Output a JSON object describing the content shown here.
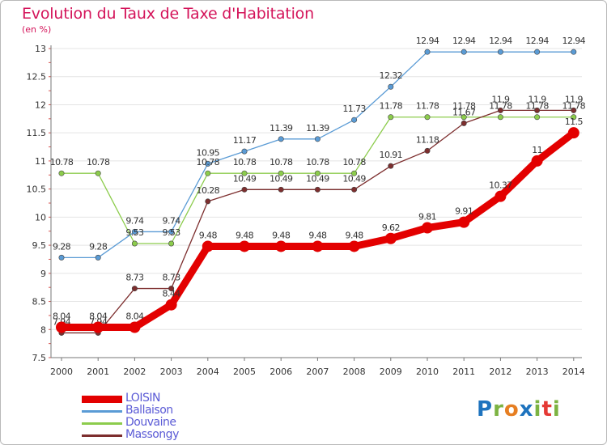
{
  "title": "Evolution du Taux de Taxe d'Habitation",
  "subtitle": "(en %)",
  "logo": {
    "text": "Proxiti",
    "letters": [
      "P",
      "r",
      "o",
      "x",
      "i",
      "t",
      "i"
    ],
    "colors": [
      "#1e73be",
      "#7cb342",
      "#e67e22",
      "#1e73be",
      "#7cb342",
      "#e53935",
      "#7cb342"
    ]
  },
  "chart_data": {
    "type": "line",
    "title": "Evolution du Taux de Taxe d'Habitation",
    "ylabel": "(en %)",
    "x": [
      "2000",
      "2001",
      "2002",
      "2003",
      "2004",
      "2005",
      "2006",
      "2007",
      "2008",
      "2009",
      "2010",
      "2011",
      "2012",
      "2013",
      "2014"
    ],
    "ylim": [
      7.5,
      13
    ],
    "yticks": [
      7.5,
      8,
      8.5,
      9,
      9.5,
      10,
      10.5,
      11,
      11.5,
      12,
      12.5,
      13
    ],
    "ytick_labels": [
      "7.5",
      "8",
      "8.5",
      "9",
      "9.5",
      "10",
      "10.5",
      "11",
      "11.5",
      "12",
      "12.5",
      "13"
    ],
    "grid": true,
    "legend": "bottom-left",
    "series": [
      {
        "name": "Ballaison",
        "color": "#5a9bd5",
        "thick": false,
        "values": [
          9.28,
          9.28,
          9.74,
          9.74,
          10.95,
          11.17,
          11.39,
          11.39,
          11.73,
          12.32,
          12.94,
          12.94,
          12.94,
          12.94,
          12.94
        ],
        "labels": [
          "9.28",
          "9.28",
          "9.74",
          "9.74",
          "10.95",
          "11.17",
          "11.39",
          "11.39",
          "11.73",
          "12.32",
          "12.94",
          "12.94",
          "12.94",
          "12.94",
          "12.94"
        ]
      },
      {
        "name": "Douvaine",
        "color": "#8ccc4c",
        "thick": false,
        "values": [
          10.78,
          10.78,
          9.53,
          9.53,
          10.78,
          10.78,
          10.78,
          10.78,
          10.78,
          11.78,
          11.78,
          11.78,
          11.78,
          11.78,
          11.78
        ],
        "labels": [
          "10.78",
          "10.78",
          "9.53",
          "9.53",
          "10.78",
          "10.78",
          "10.78",
          "10.78",
          "10.78",
          "11.78",
          "11.78",
          "11.78",
          "11.78",
          "11.78",
          "11.78"
        ]
      },
      {
        "name": "Massongy",
        "color": "#7d2e2e",
        "thick": false,
        "values": [
          7.94,
          7.94,
          8.73,
          8.73,
          10.28,
          10.49,
          10.49,
          10.49,
          10.49,
          10.91,
          11.18,
          11.67,
          11.9,
          11.9,
          11.9
        ],
        "labels": [
          "7.94",
          "7.94",
          "8.73",
          "8.73",
          "10.28",
          "10.49",
          "10.49",
          "10.49",
          "10.49",
          "10.91",
          "11.18",
          "11.67",
          "11.9",
          "11.9",
          "11.9"
        ]
      },
      {
        "name": "LOISIN",
        "color": "#e30000",
        "thick": true,
        "values": [
          8.04,
          8.04,
          8.04,
          8.44,
          9.48,
          9.48,
          9.48,
          9.48,
          9.48,
          9.62,
          9.81,
          9.91,
          10.37,
          11,
          11.5
        ],
        "labels": [
          "8.04",
          "8.04",
          "8.04",
          "8.44",
          "9.48",
          "9.48",
          "9.48",
          "9.48",
          "9.48",
          "9.62",
          "9.81",
          "9.91",
          "10.37",
          "11",
          "11.5"
        ]
      }
    ],
    "legend_order": [
      "LOISIN",
      "Ballaison",
      "Douvaine",
      "Massongy"
    ],
    "legend_color": "#5b5bd6"
  }
}
